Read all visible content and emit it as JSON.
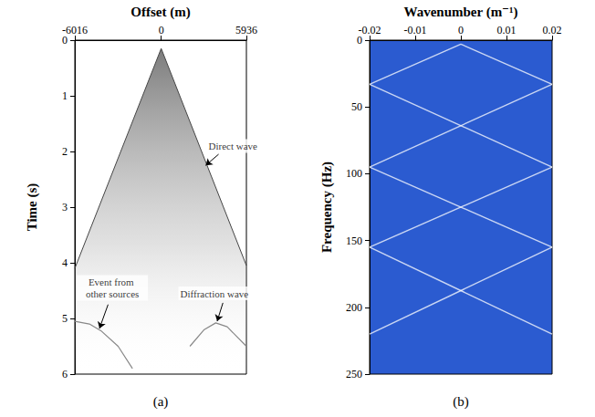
{
  "chart_data": [
    {
      "type": "line",
      "panel_label": "(a)",
      "x_label": "Offset (m)",
      "y_label": "Time (s)",
      "xlim": [
        -6016,
        5936
      ],
      "xticks": [
        -6016,
        0,
        5936
      ],
      "ylim": [
        6,
        0
      ],
      "yticks": [
        0,
        1,
        2,
        3,
        4,
        5,
        6
      ],
      "grid": false,
      "series": [
        {
          "type": "area",
          "color": "#444444",
          "values": [
            [
              -6016,
              4.1
            ],
            [
              0,
              0.15
            ],
            [
              5936,
              4.05
            ]
          ]
        },
        {
          "type": "line",
          "color": "#888888",
          "values": [
            [
              2000,
              5.5
            ],
            [
              3000,
              5.2
            ],
            [
              3800,
              5.08
            ],
            [
              4600,
              5.15
            ],
            [
              5936,
              5.5
            ]
          ]
        },
        {
          "type": "line",
          "color": "#888888",
          "values": [
            [
              -6016,
              5.05
            ],
            [
              -5000,
              5.1
            ],
            [
              -4200,
              5.22
            ],
            [
              -3000,
              5.5
            ],
            [
              -2000,
              5.9
            ]
          ]
        }
      ],
      "annotations": [
        {
          "text": "Direct wave",
          "x": 5000,
          "y": 1.9,
          "arrow_from": [
            4000,
            2.05
          ],
          "arrow_to": [
            3100,
            2.25
          ]
        },
        {
          "text": "Diffraction wave",
          "x": 3700,
          "y": 4.55,
          "arrow_from": [
            4300,
            4.72
          ],
          "arrow_to": [
            3900,
            5.05
          ]
        },
        {
          "text": "Event from other sources",
          "x": -3400,
          "y": 4.45,
          "arrow_from": [
            -3700,
            4.75
          ],
          "arrow_to": [
            -4300,
            5.18
          ]
        }
      ]
    },
    {
      "type": "line",
      "panel_label": "(b)",
      "x_label": "Wavenumber (m⁻¹)",
      "y_label": "Frequency (Hz)",
      "xlim": [
        -0.02,
        0.02
      ],
      "xticks": [
        -0.02,
        -0.01,
        0,
        0.01,
        0.02
      ],
      "ylim": [
        250,
        0
      ],
      "yticks": [
        0,
        50,
        100,
        150,
        200,
        250
      ],
      "grid": false,
      "color": "#2b5bd0",
      "series": [
        {
          "type": "line",
          "color": "#ffffff",
          "values": [
            [
              -0.02,
              33
            ],
            [
              0,
              3
            ],
            [
              0.02,
              33
            ]
          ]
        },
        {
          "type": "line",
          "color": "#ffffff",
          "values": [
            [
              -0.02,
              33
            ],
            [
              0.02,
              95
            ]
          ]
        },
        {
          "type": "line",
          "color": "#ffffff",
          "values": [
            [
              0.02,
              33
            ],
            [
              -0.02,
              95
            ]
          ]
        },
        {
          "type": "line",
          "color": "#ffffff",
          "values": [
            [
              -0.02,
              95
            ],
            [
              0.02,
              155
            ]
          ]
        },
        {
          "type": "line",
          "color": "#ffffff",
          "values": [
            [
              0.02,
              95
            ],
            [
              -0.02,
              155
            ]
          ]
        },
        {
          "type": "line",
          "color": "#ffffff",
          "values": [
            [
              -0.02,
              155
            ],
            [
              0.02,
              220
            ]
          ]
        },
        {
          "type": "line",
          "color": "#ffffff",
          "values": [
            [
              0.02,
              155
            ],
            [
              -0.02,
              220
            ]
          ]
        }
      ]
    }
  ]
}
